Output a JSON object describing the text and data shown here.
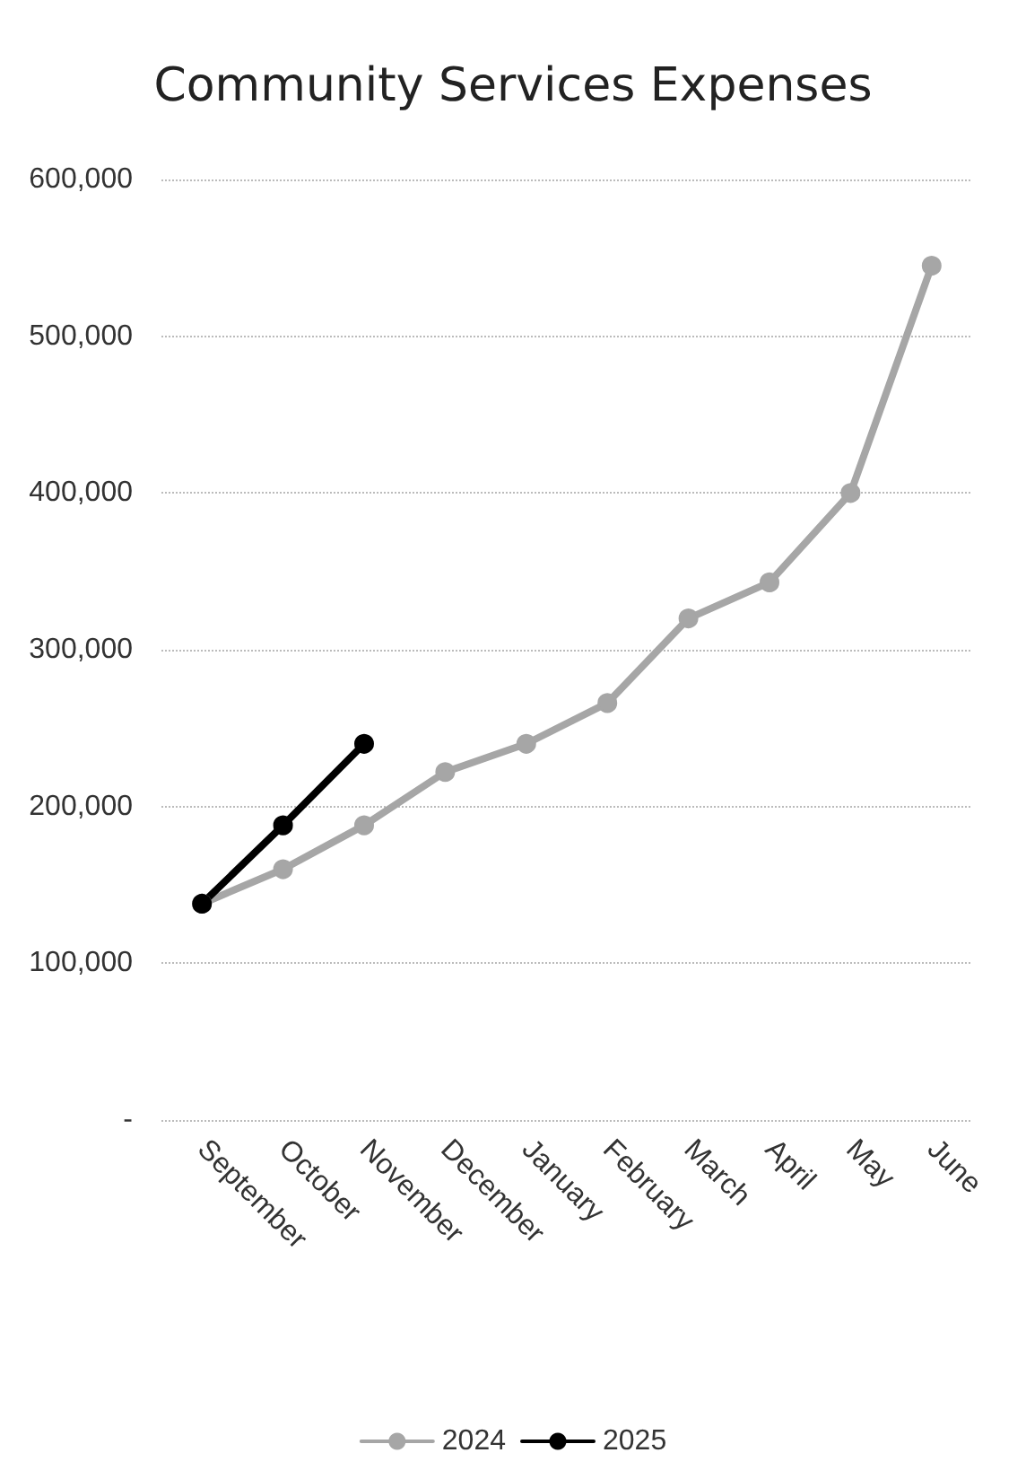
{
  "chart_data": {
    "type": "line",
    "title": "Community Services Expenses",
    "categories": [
      "September",
      "October",
      "November",
      "December",
      "January",
      "February",
      "March",
      "April",
      "May",
      "June"
    ],
    "series": [
      {
        "name": "2024",
        "color": "#a6a6a6",
        "values": [
          138000,
          160000,
          188000,
          222000,
          240000,
          266000,
          320000,
          343000,
          400000,
          545000
        ]
      },
      {
        "name": "2025",
        "color": "#000000",
        "values": [
          138000,
          188000,
          240000,
          null,
          null,
          null,
          null,
          null,
          null,
          null
        ]
      }
    ],
    "ylim": [
      0,
      600000
    ],
    "yticks": [
      {
        "value": 0,
        "label": "-"
      },
      {
        "value": 100000,
        "label": "100,000"
      },
      {
        "value": 200000,
        "label": "200,000"
      },
      {
        "value": 300000,
        "label": "300,000"
      },
      {
        "value": 400000,
        "label": "400,000"
      },
      {
        "value": 500000,
        "label": "500,000"
      },
      {
        "value": 600000,
        "label": "600,000"
      }
    ],
    "grid": "y",
    "legend": "bottom",
    "marker": "circle",
    "line_style": "solid"
  }
}
